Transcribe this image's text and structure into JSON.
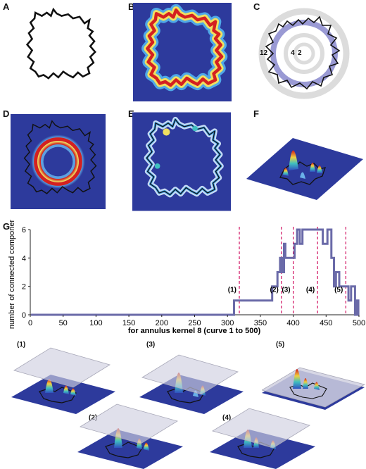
{
  "panels": {
    "a": "A",
    "b": "B",
    "c": "C",
    "d": "D",
    "e": "E",
    "f": "F",
    "g": "G"
  },
  "panel_c_ring_labels": [
    "12",
    "4",
    "2"
  ],
  "bottom_panels": [
    "(1)",
    "(2)",
    "(3)",
    "(4)",
    "(5)"
  ],
  "colors": {
    "heat_background": "#2d3a9c",
    "series_line": "#6a6aa8",
    "marker_line": "#d01060",
    "ring_gray": "#d6d6d6",
    "ring_purple": "#9a9ad4"
  },
  "chart_data": {
    "type": "line",
    "title": "",
    "xlabel": "for annulus kernel 8 (curve 1 to 500)",
    "ylabel": "number of connected components",
    "xlim": [
      0,
      500
    ],
    "ylim": [
      0,
      6
    ],
    "xticks": [
      0,
      50,
      100,
      150,
      200,
      250,
      300,
      350,
      400,
      450,
      500
    ],
    "yticks": [
      0,
      2,
      4,
      6
    ],
    "series": [
      {
        "x": [
          1,
          310,
          310,
          368,
          368,
          376,
          376,
          380,
          380,
          383,
          383,
          386,
          386,
          388,
          388,
          402,
          402,
          406,
          406,
          410,
          410,
          414,
          414,
          445,
          445,
          452,
          452,
          458,
          458,
          462,
          462,
          465,
          465,
          470,
          470,
          484,
          484,
          488,
          488,
          494,
          494,
          496,
          496,
          499,
          499,
          500
        ],
        "y": [
          0,
          0,
          1,
          1,
          2,
          2,
          3,
          3,
          4,
          4,
          3,
          3,
          5,
          5,
          4,
          4,
          5,
          5,
          6,
          6,
          5,
          5,
          6,
          6,
          5,
          5,
          6,
          6,
          4,
          4,
          2,
          2,
          3,
          3,
          2,
          2,
          1,
          1,
          2,
          2,
          0,
          0,
          1,
          1,
          0,
          0
        ]
      }
    ],
    "markers": [
      {
        "x": 318,
        "label": "(1)"
      },
      {
        "x": 382,
        "label": "(2)"
      },
      {
        "x": 400,
        "label": "(3)"
      },
      {
        "x": 437,
        "label": "(4)"
      },
      {
        "x": 480,
        "label": "(5)"
      }
    ],
    "grid": false
  }
}
